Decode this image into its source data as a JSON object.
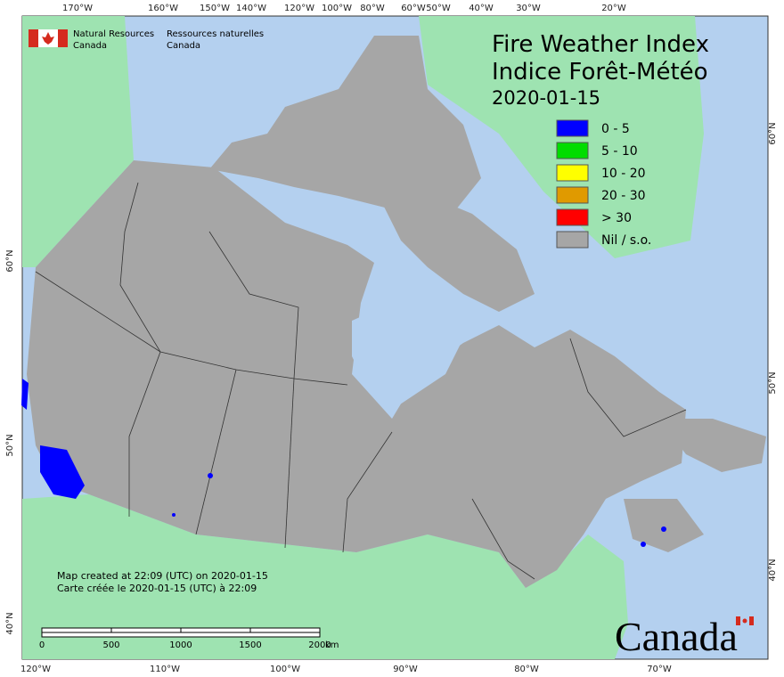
{
  "header": {
    "agency_en": [
      "Natural Resources",
      "Canada"
    ],
    "agency_fr": [
      "Ressources naturelles",
      "Canada"
    ]
  },
  "title": [
    "Fire Weather Index",
    "Indice Forêt-Météo"
  ],
  "date": "2020-01-15",
  "legend": [
    {
      "label": "0 - 5",
      "color": "#0000ff"
    },
    {
      "label": "5 - 10",
      "color": "#00dd00"
    },
    {
      "label": "10 - 20",
      "color": "#ffff00"
    },
    {
      "label": "20 - 30",
      "color": "#e09a00"
    },
    {
      "label": "> 30",
      "color": "#ff0000"
    },
    {
      "label": "Nil / s.o.",
      "color": "#a6a6a6"
    }
  ],
  "top_ticks": [
    "170°W",
    "160°W",
    "150°W",
    "140°W",
    "120°W",
    "100°W",
    "80°W",
    "60°W",
    "50°W",
    "40°W",
    "30°W",
    "20°W"
  ],
  "bottom_ticks": [
    "120°W",
    "110°W",
    "100°W",
    "90°W",
    "80°W",
    "70°W"
  ],
  "left_ticks": [
    "60°N",
    "50°N",
    "40°N"
  ],
  "right_ticks": [
    "60°N",
    "50°N",
    "40°N"
  ],
  "footer": [
    "Map created at 22:09 (UTC) on 2020-01-15",
    "Carte créée le 2020-01-15 (UTC) à 22:09"
  ],
  "scale_bar": {
    "labels": [
      "0",
      "500",
      "1000",
      "1500",
      "2000"
    ],
    "unit": "km"
  },
  "wordmark": "Canada"
}
